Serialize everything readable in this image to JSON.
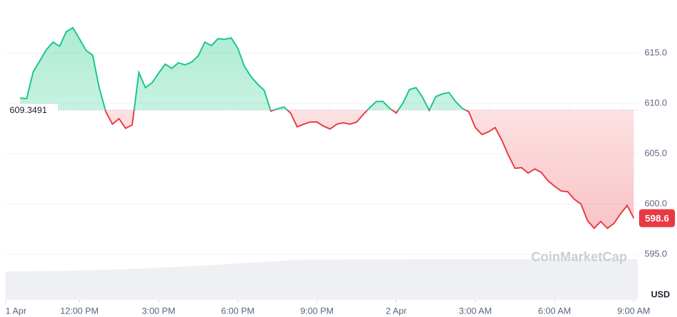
{
  "chart_data": {
    "type": "line",
    "x": [
      9.75,
      10,
      10.25,
      10.5,
      10.75,
      11,
      11.25,
      11.5,
      11.75,
      12,
      12.25,
      12.5,
      12.75,
      13,
      13.25,
      13.5,
      13.75,
      14,
      14.25,
      14.5,
      14.75,
      15,
      15.25,
      15.5,
      15.75,
      16,
      16.25,
      16.5,
      16.75,
      17,
      17.25,
      17.5,
      17.75,
      18,
      18.25,
      18.5,
      18.75,
      19,
      19.25,
      19.5,
      19.75,
      20,
      20.25,
      20.5,
      20.75,
      21,
      21.25,
      21.5,
      21.75,
      22,
      22.25,
      22.5,
      22.75,
      23,
      23.25,
      23.5,
      23.75,
      24,
      24.25,
      24.5,
      24.75,
      25,
      25.25,
      25.5,
      25.75,
      26,
      26.25,
      26.5,
      26.75,
      27,
      27.25,
      27.5,
      27.75,
      28,
      28.25,
      28.5,
      28.75,
      29,
      29.25,
      29.5,
      29.75,
      30,
      30.25,
      30.5,
      30.75,
      31,
      31.25,
      31.5,
      31.75,
      32,
      32.25,
      32.5,
      32.75,
      33
    ],
    "values": [
      610.54,
      610.48,
      613.15,
      614.24,
      615.34,
      616.09,
      615.68,
      617.12,
      617.53,
      616.43,
      615.27,
      614.79,
      611.57,
      609.17,
      607.94,
      608.49,
      607.53,
      607.87,
      613.08,
      611.57,
      612.05,
      613.01,
      613.9,
      613.49,
      614.04,
      613.83,
      614.11,
      614.72,
      616.09,
      615.75,
      616.43,
      616.37,
      616.5,
      615.48,
      613.69,
      612.67,
      611.91,
      611.3,
      609.24,
      609.45,
      609.65,
      609.04,
      607.67,
      607.94,
      608.15,
      608.15,
      607.74,
      607.46,
      607.94,
      608.08,
      607.94,
      608.15,
      608.9,
      609.59,
      610.2,
      610.2,
      609.52,
      609.04,
      610.0,
      611.37,
      611.57,
      610.61,
      609.31,
      610.68,
      610.95,
      611.09,
      610.2,
      609.52,
      609.17,
      607.6,
      606.91,
      607.19,
      607.6,
      606.37,
      604.86,
      603.56,
      603.63,
      603.08,
      603.49,
      603.15,
      602.32,
      601.78,
      601.3,
      601.23,
      600.48,
      600.0,
      598.35,
      597.6,
      598.28,
      597.6,
      598.08,
      599.04,
      599.86,
      598.6
    ],
    "baseline": 609.3491,
    "colors": {
      "above": "#16c784",
      "below": "#ea3943"
    },
    "xlim": [
      9.2,
      33.15
    ],
    "xticks": [
      {
        "value": 9.2,
        "label": "1 Apr"
      },
      {
        "value": 12,
        "label": "12:00 PM"
      },
      {
        "value": 15,
        "label": "3:00 PM"
      },
      {
        "value": 18,
        "label": "6:00 PM"
      },
      {
        "value": 21,
        "label": "9:00 PM"
      },
      {
        "value": 24,
        "label": "2 Apr"
      },
      {
        "value": 27,
        "label": "3:00 AM"
      },
      {
        "value": 30,
        "label": "6:00 AM"
      },
      {
        "value": 33,
        "label": "9:00 AM"
      }
    ],
    "ylim": [
      590.5,
      620
    ],
    "yticks": [
      {
        "value": 595,
        "label": "595.0"
      },
      {
        "value": 600,
        "label": "600.0"
      },
      {
        "value": 605,
        "label": "605.0"
      },
      {
        "value": 610,
        "label": "610.0"
      },
      {
        "value": 615,
        "label": "615.0"
      }
    ],
    "grid": true,
    "unit": "USD",
    "watermark": "CoinMarketCap"
  }
}
